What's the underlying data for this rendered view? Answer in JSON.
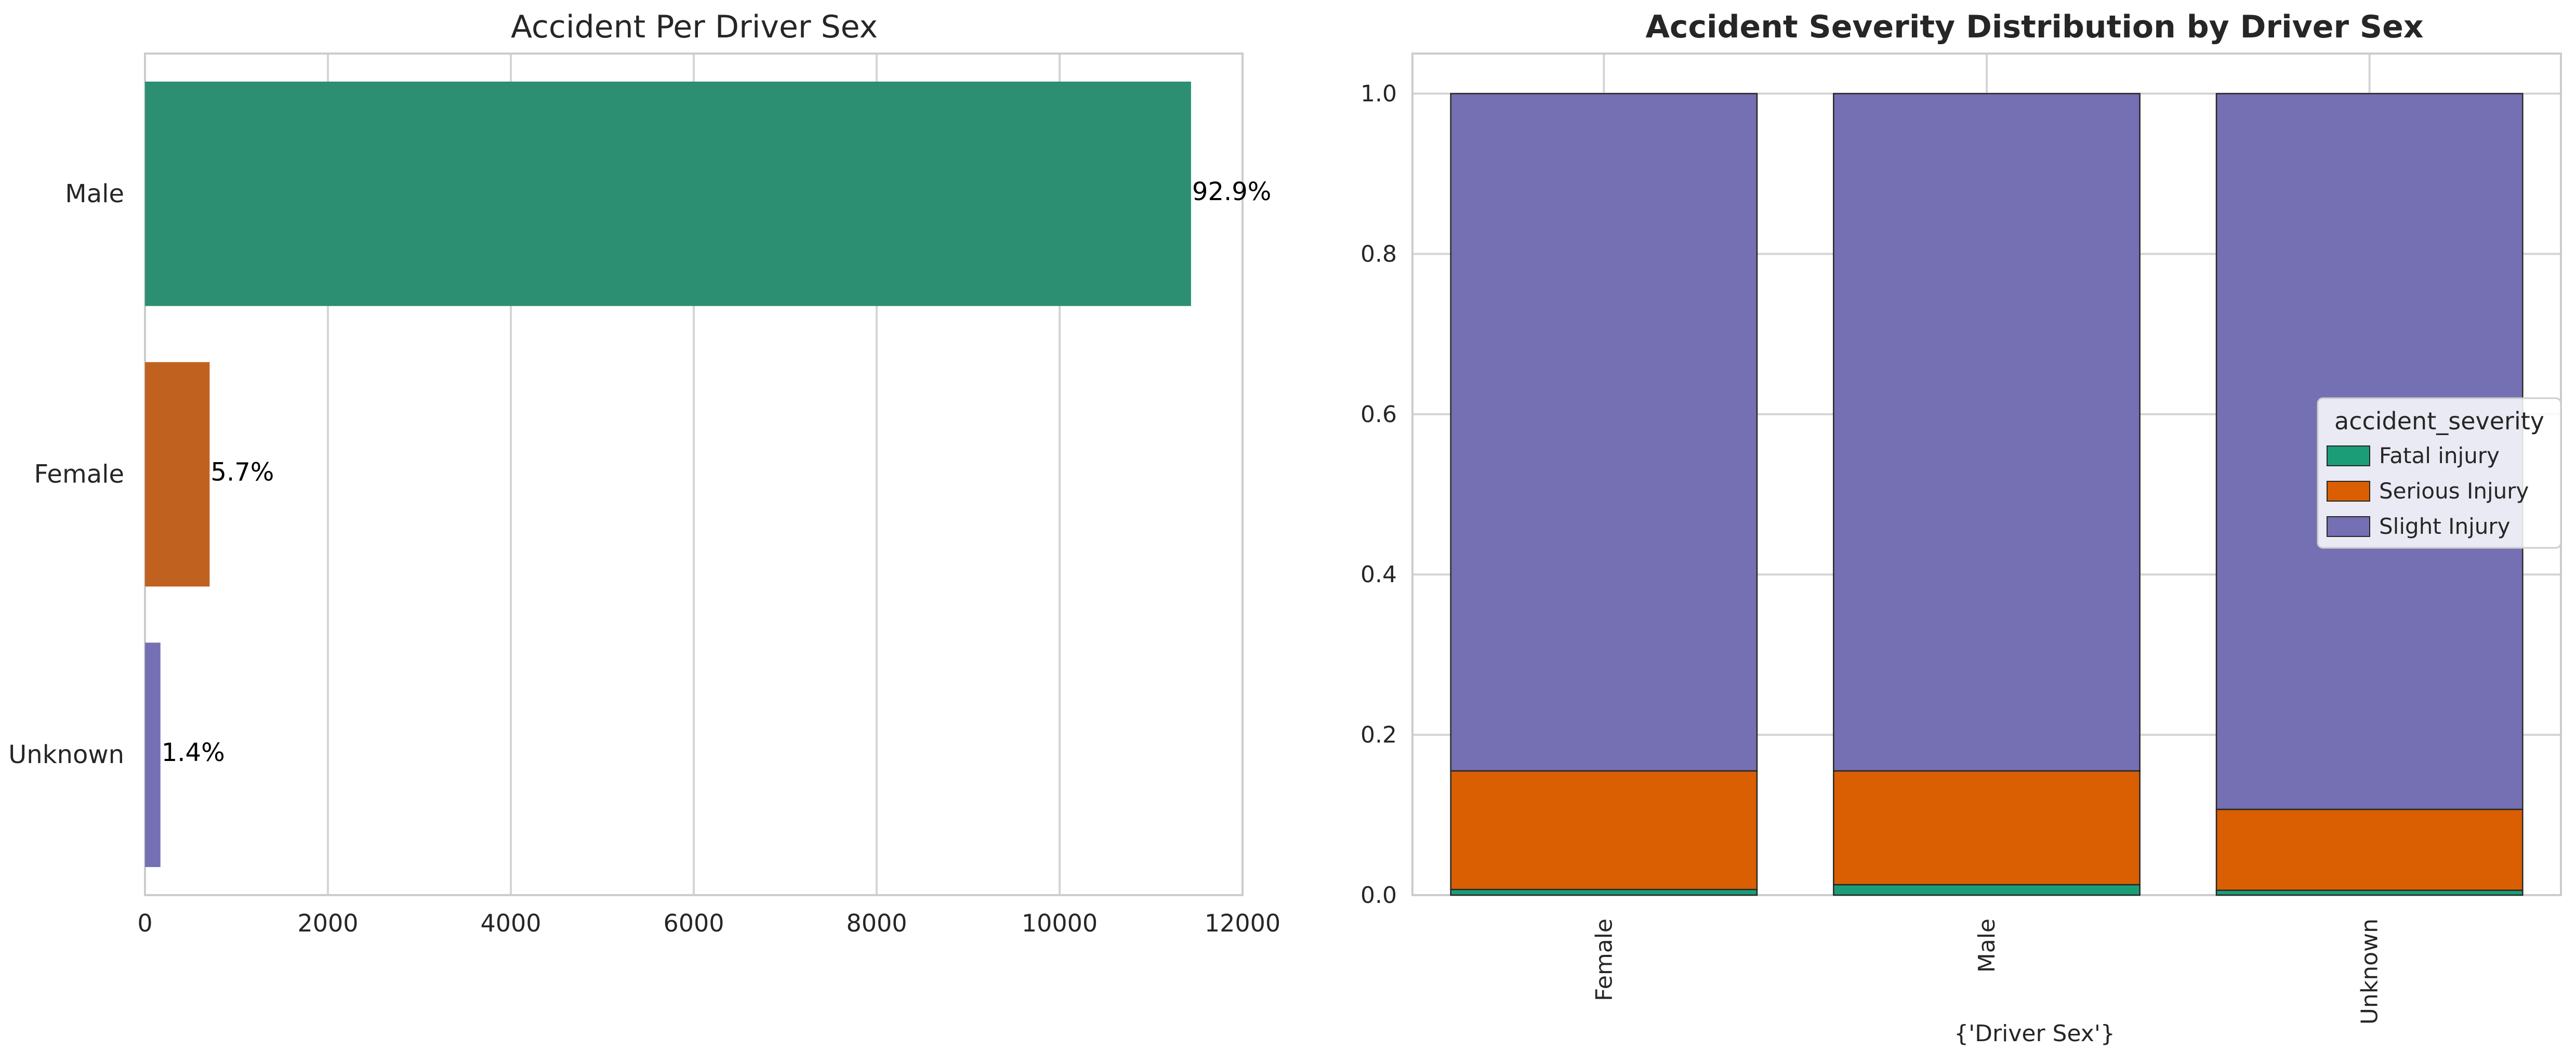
{
  "chart_data": [
    {
      "type": "bar",
      "orientation": "horizontal",
      "title": "Accident Per Driver Sex",
      "categories": [
        "Male",
        "Female",
        "Unknown"
      ],
      "values": [
        11437,
        707,
        169
      ],
      "percent_labels": [
        "92.9%",
        "5.7%",
        "1.4%"
      ],
      "colors": [
        "#2c8f72",
        "#c1611f",
        "#7570b3"
      ],
      "xlim": [
        0,
        12000
      ],
      "xticks": [
        0,
        2000,
        4000,
        6000,
        8000,
        10000,
        12000
      ],
      "xtick_labels": [
        "0",
        "2000",
        "4000",
        "6000",
        "8000",
        "10000",
        "12000"
      ],
      "grid": "vertical"
    },
    {
      "type": "bar",
      "stacked": true,
      "title": "Accident Severity Distribution by Driver Sex",
      "xlabel": "{'Driver Sex'}",
      "categories": [
        "Female",
        "Male",
        "Unknown"
      ],
      "ylim": [
        0,
        1.05
      ],
      "yticks": [
        0.0,
        0.2,
        0.4,
        0.6,
        0.8,
        1.0
      ],
      "ytick_labels": [
        "0.0",
        "0.2",
        "0.4",
        "0.6",
        "0.8",
        "1.0"
      ],
      "grid": "both",
      "legend": {
        "title": "accident_severity",
        "placement": "center-right"
      },
      "series": [
        {
          "name": "Fatal injury",
          "color": "#1b9e77",
          "values": [
            0.007,
            0.013,
            0.006
          ],
          "labels": [
            "0.7%",
            "1.3%",
            "0.6%"
          ]
        },
        {
          "name": "Serious Injury",
          "color": "#d95f02",
          "values": [
            0.148,
            0.142,
            0.101
          ],
          "labels": [
            "14.8%",
            "14.2%",
            "10.1%"
          ]
        },
        {
          "name": "Slight Injury",
          "color": "#7570b3",
          "values": [
            0.845,
            0.845,
            0.893
          ]
        }
      ]
    }
  ]
}
